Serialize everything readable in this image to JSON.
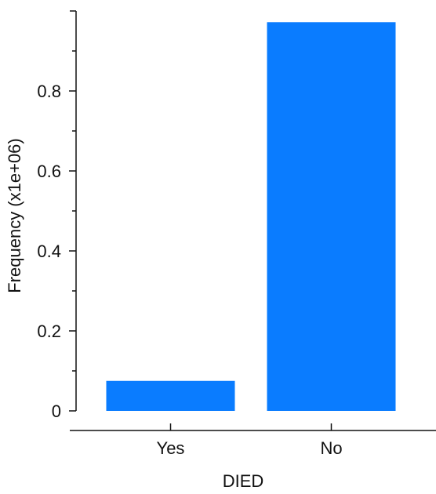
{
  "chart_data": {
    "type": "bar",
    "categories": [
      "Yes",
      "No"
    ],
    "values": [
      0.075,
      0.972
    ],
    "xlabel": "DIED",
    "ylabel": "Frequency (x1e+06)",
    "ylim": [
      0,
      0.96
    ],
    "y_ticks": [
      0,
      0.2,
      0.4,
      0.6,
      0.8
    ],
    "y_tick_labels": [
      "0",
      "0.2",
      "0.4",
      "0.6",
      "0.8"
    ],
    "grid": false,
    "legend": "none",
    "bar_color": "#0A7CFF"
  }
}
